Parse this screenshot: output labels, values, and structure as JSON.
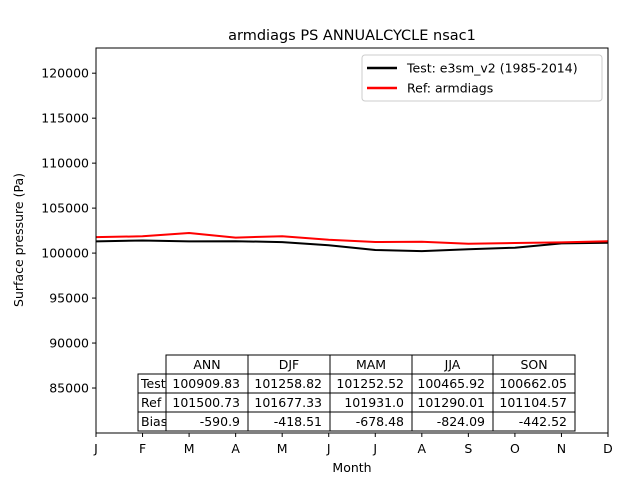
{
  "chart_data": {
    "type": "line",
    "title": "armdiags PS ANNUALCYCLE nsac1",
    "xlabel": "Month",
    "ylabel": "Surface pressure (Pa)",
    "x_ticks": [
      "J",
      "F",
      "M",
      "A",
      "M",
      "J",
      "J",
      "A",
      "S",
      "O",
      "N",
      "D"
    ],
    "y_ticks": [
      85000,
      90000,
      95000,
      100000,
      105000,
      110000,
      115000,
      120000
    ],
    "ylim": [
      80000,
      122800
    ],
    "grid": false,
    "legend_position": "top-right",
    "series": [
      {
        "name": "Test: e3sm_v2 (1985-2014)",
        "color": "#000000",
        "values": [
          101300,
          101400,
          101300,
          101320,
          101220,
          100880,
          100340,
          100220,
          100430,
          100600,
          101080,
          101140
        ]
      },
      {
        "name": "Ref: armdiags",
        "color": "#ff0000",
        "values": [
          101780,
          101870,
          102230,
          101720,
          101880,
          101480,
          101230,
          101260,
          101040,
          101120,
          101190,
          101320
        ]
      }
    ],
    "table": {
      "columns": [
        "ANN",
        "DJF",
        "MAM",
        "JJA",
        "SON"
      ],
      "rows": [
        {
          "label": "Test",
          "cells": [
            "100909.83",
            "101258.82",
            "101252.52",
            "100465.92",
            "100662.05"
          ]
        },
        {
          "label": "Ref",
          "cells": [
            "101500.73",
            "101677.33",
            "101931.0",
            "101290.01",
            "101104.57"
          ]
        },
        {
          "label": "Bias",
          "cells": [
            "-590.9",
            "-418.51",
            "-678.48",
            "-824.09",
            "-442.52"
          ]
        }
      ]
    }
  }
}
